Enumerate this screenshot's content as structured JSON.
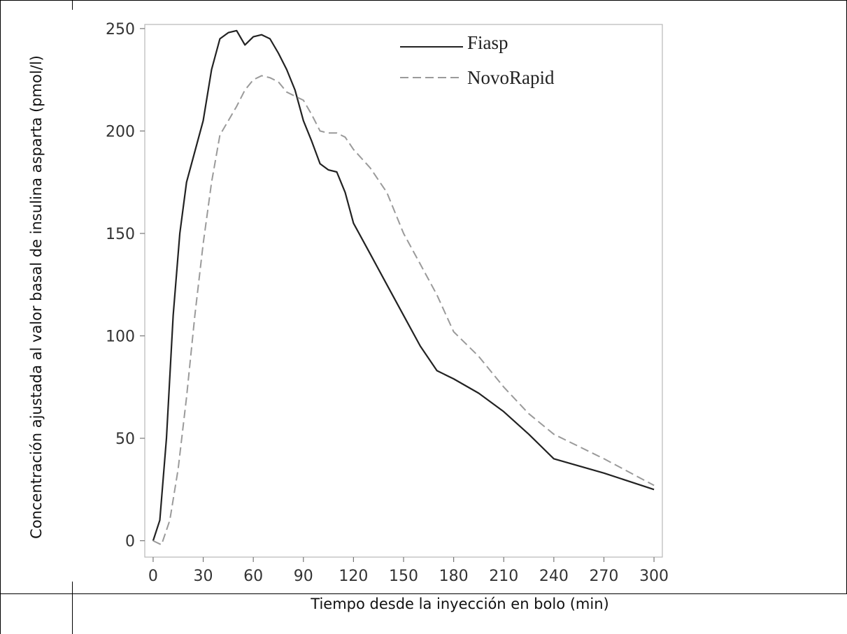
{
  "chart_data": {
    "type": "line",
    "title": "",
    "xlabel": "Tiempo desde la inyección en bolo (min)",
    "ylabel": "Concentración ajustada al valor  basal de insulina asparta (pmol/l)",
    "xlim": [
      -5,
      305
    ],
    "ylim": [
      -8,
      252
    ],
    "xticks": [
      0,
      30,
      60,
      90,
      120,
      150,
      180,
      210,
      240,
      270,
      300
    ],
    "yticks": [
      0,
      50,
      100,
      150,
      200,
      250
    ],
    "xtick_labels": [
      "0",
      "30",
      "60",
      "90",
      "120",
      "150",
      "180",
      "210",
      "240",
      "270",
      "300"
    ],
    "ytick_labels": [
      "0",
      "50",
      "100",
      "150",
      "200",
      "250"
    ],
    "grid": false,
    "legend_position": "top-right",
    "series": [
      {
        "name": "Fiasp",
        "style": "solid",
        "color": "#222222",
        "x": [
          0,
          4,
          8,
          12,
          16,
          20,
          25,
          30,
          35,
          40,
          45,
          50,
          55,
          60,
          65,
          70,
          75,
          80,
          85,
          90,
          95,
          100,
          105,
          110,
          115,
          120,
          130,
          140,
          150,
          160,
          170,
          180,
          195,
          210,
          225,
          240,
          270,
          300
        ],
        "y": [
          0,
          10,
          50,
          110,
          150,
          175,
          190,
          205,
          230,
          245,
          248,
          249,
          242,
          246,
          247,
          245,
          238,
          230,
          220,
          205,
          195,
          184,
          181,
          180,
          170,
          155,
          140,
          125,
          110,
          95,
          83,
          79,
          72,
          63,
          52,
          40,
          33,
          25
        ]
      },
      {
        "name": "NovoRapid",
        "style": "dashed",
        "color": "#9a9a9a",
        "x": [
          0,
          5,
          10,
          15,
          20,
          25,
          30,
          35,
          40,
          45,
          50,
          55,
          60,
          65,
          70,
          75,
          80,
          85,
          90,
          95,
          100,
          105,
          110,
          115,
          120,
          130,
          140,
          150,
          160,
          170,
          180,
          195,
          210,
          225,
          240,
          270,
          300
        ],
        "y": [
          0,
          -2,
          10,
          35,
          70,
          110,
          145,
          175,
          198,
          205,
          212,
          220,
          225,
          227,
          226,
          224,
          219,
          217,
          215,
          208,
          200,
          199,
          199,
          197,
          191,
          182,
          170,
          150,
          135,
          120,
          102,
          90,
          75,
          62,
          52,
          40,
          27
        ]
      }
    ]
  }
}
